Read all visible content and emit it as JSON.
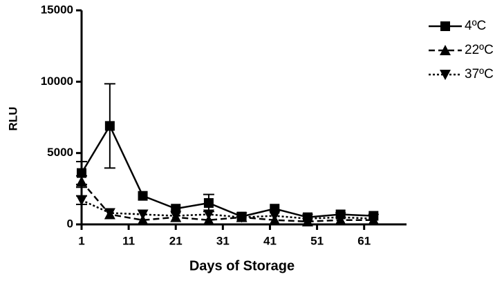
{
  "chart_data": {
    "type": "line",
    "xlabel": "Days of Storage",
    "ylabel": "RLU",
    "x": [
      1,
      7,
      14,
      21,
      28,
      35,
      42,
      49,
      56,
      63
    ],
    "series": [
      {
        "name": "4ºC",
        "color": "#000000",
        "marker": "square",
        "dash": "solid",
        "values": [
          3600,
          6900,
          2000,
          1100,
          1500,
          550,
          1100,
          500,
          700,
          600
        ],
        "errors": [
          800,
          2950,
          null,
          null,
          600,
          null,
          null,
          null,
          null,
          null
        ]
      },
      {
        "name": "22ºC",
        "color": "#000000",
        "marker": "triangle-up",
        "dash": "dashed",
        "values": [
          3000,
          700,
          300,
          500,
          300,
          500,
          300,
          200,
          300,
          300
        ],
        "errors": [
          400,
          null,
          null,
          null,
          null,
          null,
          null,
          null,
          null,
          null
        ]
      },
      {
        "name": "37ºC",
        "color": "#000000",
        "marker": "triangle-down",
        "dash": "dotted",
        "values": [
          1700,
          800,
          700,
          600,
          700,
          500,
          600,
          400,
          500,
          400
        ],
        "errors": [
          300,
          null,
          null,
          null,
          null,
          null,
          null,
          null,
          null,
          null
        ]
      }
    ],
    "xlim": [
      1,
      70
    ],
    "xticks": [
      1,
      11,
      21,
      31,
      41,
      51,
      61
    ],
    "ylim": [
      0,
      15000
    ],
    "yticks": [
      0,
      5000,
      10000,
      15000
    ],
    "grid": false,
    "legend": "top-right"
  }
}
